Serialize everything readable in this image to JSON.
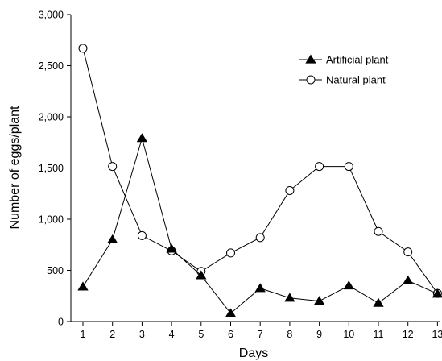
{
  "chart_data": {
    "type": "line",
    "title": "",
    "xlabel": "Days",
    "ylabel": "Number of eggs/plant",
    "x": [
      1,
      2,
      3,
      4,
      5,
      6,
      7,
      8,
      9,
      10,
      11,
      12,
      13
    ],
    "x_tick_labels": [
      "1",
      "2",
      "3",
      "4",
      "5",
      "6",
      "7",
      "8",
      "9",
      "10",
      "11",
      "12",
      "13"
    ],
    "ylim": [
      0,
      3000
    ],
    "y_ticks": [
      0,
      500,
      1000,
      1500,
      2000,
      2500,
      3000
    ],
    "y_tick_labels": [
      "0",
      "500",
      "1,000",
      "1,500",
      "2,000",
      "2,500",
      "3,000"
    ],
    "grid": false,
    "legend_position": "top-right",
    "series": [
      {
        "name": "Artificial plant",
        "marker": "filled-triangle",
        "color": "#000000",
        "values": [
          340,
          800,
          1790,
          710,
          450,
          80,
          325,
          230,
          200,
          350,
          180,
          400,
          270
        ]
      },
      {
        "name": "Natural plant",
        "marker": "open-circle",
        "color": "#000000",
        "values": [
          2670,
          1515,
          840,
          690,
          490,
          670,
          820,
          1280,
          1515,
          1515,
          880,
          680,
          275
        ]
      }
    ]
  }
}
